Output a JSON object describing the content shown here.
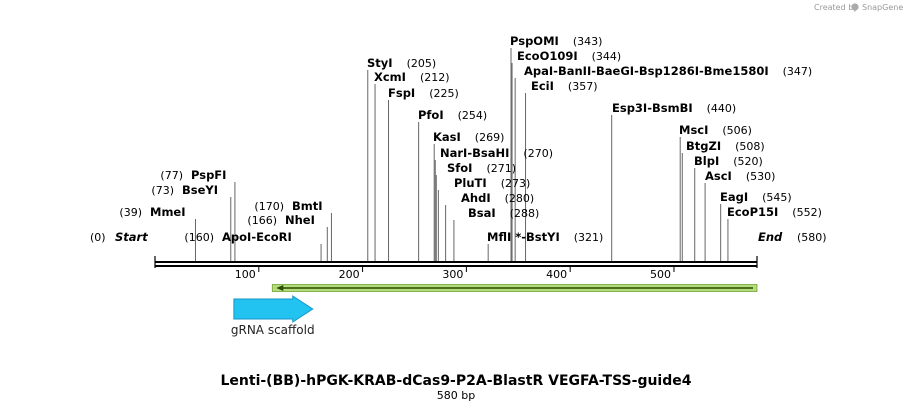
{
  "credit": {
    "text": "Created by",
    "brand": "SnapGene"
  },
  "map": {
    "title": "Lenti-(BB)-hPGK-KRAB-dCas9-P2A-BlastR VEGFA-TSS-guide4",
    "length_label": "580 bp",
    "length": 580,
    "start_label": "Start",
    "start_pos": "(0)",
    "end_label": "End",
    "end_pos": "(580)",
    "ticks": [
      {
        "value": 100,
        "label": "100"
      },
      {
        "value": 200,
        "label": "200"
      },
      {
        "value": 300,
        "label": "300"
      },
      {
        "value": 400,
        "label": "400"
      },
      {
        "value": 500,
        "label": "500"
      }
    ],
    "sites": [
      {
        "pos": 39,
        "names": [
          "MmeI"
        ],
        "pos_label": "(39)",
        "label_pos": "left"
      },
      {
        "pos": 73,
        "names": [
          "BseYI"
        ],
        "pos_label": "(73)",
        "label_pos": "left"
      },
      {
        "pos": 77,
        "names": [
          "PspFI"
        ],
        "pos_label": "(77)",
        "label_pos": "left"
      },
      {
        "pos": 160,
        "names": [
          "ApoI",
          "EcoRI"
        ],
        "pos_label": "(160)",
        "label_pos": "left"
      },
      {
        "pos": 166,
        "names": [
          "NheI"
        ],
        "pos_label": "(166)",
        "label_pos": "left"
      },
      {
        "pos": 170,
        "names": [
          "BmtI"
        ],
        "pos_label": "(170)",
        "label_pos": "left"
      },
      {
        "pos": 205,
        "names": [
          "StyI"
        ],
        "pos_label": "(205)",
        "label_pos": "right"
      },
      {
        "pos": 212,
        "names": [
          "XcmI"
        ],
        "pos_label": "(212)",
        "label_pos": "right"
      },
      {
        "pos": 225,
        "names": [
          "FspI"
        ],
        "pos_label": "(225)",
        "label_pos": "right"
      },
      {
        "pos": 254,
        "names": [
          "PfoI"
        ],
        "pos_label": "(254)",
        "label_pos": "right"
      },
      {
        "pos": 269,
        "names": [
          "KasI"
        ],
        "pos_label": "(269)",
        "label_pos": "right"
      },
      {
        "pos": 270,
        "names": [
          "NarI",
          "BsaHI"
        ],
        "pos_label": "(270)",
        "label_pos": "right"
      },
      {
        "pos": 271,
        "names": [
          "SfoI"
        ],
        "pos_label": "(271)",
        "label_pos": "right"
      },
      {
        "pos": 273,
        "names": [
          "PluTI"
        ],
        "pos_label": "(273)",
        "label_pos": "right"
      },
      {
        "pos": 280,
        "names": [
          "AhdI"
        ],
        "pos_label": "(280)",
        "label_pos": "right"
      },
      {
        "pos": 288,
        "names": [
          "BsaI"
        ],
        "pos_label": "(288)",
        "label_pos": "right"
      },
      {
        "pos": 321,
        "names": [
          "MflI *",
          "BstYI"
        ],
        "pos_label": "(321)",
        "label_pos": "right"
      },
      {
        "pos": 343,
        "names": [
          "PspOMI"
        ],
        "pos_label": "(343)",
        "label_pos": "right"
      },
      {
        "pos": 344,
        "names": [
          "EcoO109I"
        ],
        "pos_label": "(344)",
        "label_pos": "right"
      },
      {
        "pos": 347,
        "names": [
          "ApaI",
          "BanII",
          "BaeGI",
          "Bsp1286I",
          "Bme1580I"
        ],
        "pos_label": "(347)",
        "label_pos": "right"
      },
      {
        "pos": 357,
        "names": [
          "EciI"
        ],
        "pos_label": "(357)",
        "label_pos": "right"
      },
      {
        "pos": 440,
        "names": [
          "Esp3I",
          "BsmBI"
        ],
        "pos_label": "(440)",
        "label_pos": "right"
      },
      {
        "pos": 506,
        "names": [
          "MscI"
        ],
        "pos_label": "(506)",
        "label_pos": "right"
      },
      {
        "pos": 508,
        "names": [
          "BtgZI"
        ],
        "pos_label": "(508)",
        "label_pos": "right"
      },
      {
        "pos": 520,
        "names": [
          "BlpI"
        ],
        "pos_label": "(520)",
        "label_pos": "right"
      },
      {
        "pos": 530,
        "names": [
          "AscI"
        ],
        "pos_label": "(530)",
        "label_pos": "right"
      },
      {
        "pos": 545,
        "names": [
          "EagI"
        ],
        "pos_label": "(545)",
        "label_pos": "right"
      },
      {
        "pos": 552,
        "names": [
          "EcoP15I"
        ],
        "pos_label": "(552)",
        "label_pos": "right"
      }
    ],
    "features": [
      {
        "name": "gRNA scaffold",
        "start": 76,
        "end": 152,
        "direction": "forward",
        "color": "#22c3f0",
        "label": "gRNA scaffold"
      },
      {
        "name": "",
        "start": 113,
        "end": 580,
        "direction": "reverse",
        "color": "#b5dc7c",
        "label": ""
      }
    ]
  }
}
